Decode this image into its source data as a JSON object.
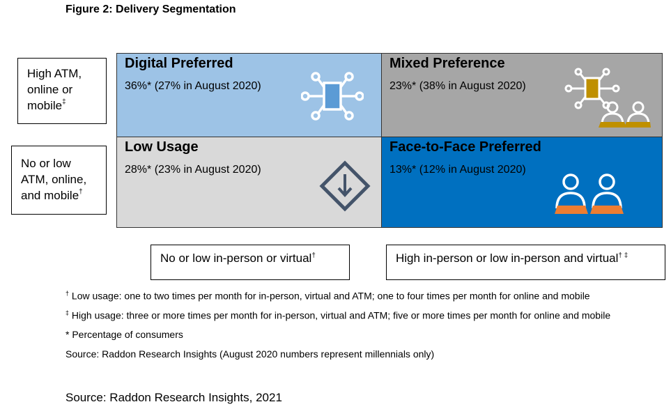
{
  "title": "Figure 2: Delivery Segmentation",
  "row_labels": {
    "high": {
      "line1": "High ATM,",
      "line2": "online or",
      "line3": "mobile",
      "mark": "‡"
    },
    "low": {
      "line1": "No or low",
      "line2": "ATM, online,",
      "line3": "and mobile",
      "mark": "†"
    }
  },
  "col_labels": {
    "low": {
      "text": "No or low in-person or virtual",
      "mark": "†"
    },
    "high": {
      "text": "High in-person or low in-person and virtual",
      "mark": "† ‡"
    }
  },
  "quadrants": {
    "digital": {
      "title": "Digital Preferred",
      "value": "36%* (27% in August 2020)",
      "color": "#9dc3e6",
      "icon": "chip-network-icon"
    },
    "mixed": {
      "title": "Mixed Preference",
      "value": "23%* (38% in August 2020)",
      "color": "#a6a6a6",
      "icon": "chip-with-people-icon"
    },
    "low": {
      "title": "Low Usage",
      "value": "28%* (23% in August 2020)",
      "color": "#d9d9d9",
      "icon": "diamond-down-arrow-icon"
    },
    "face": {
      "title": "Face-to-Face Preferred",
      "value": "13%* (12% in August 2020)",
      "color": "#0070c0",
      "icon": "two-people-icon"
    }
  },
  "notes": {
    "n1": {
      "mark": "†",
      "text": " Low usage: one to two times per month for in-person, virtual and ATM; one to four times per month for online and mobile"
    },
    "n2": {
      "mark": "‡",
      "text": " High usage: three or more times per month for in-person, virtual and ATM; five or more times per month for online and mobile"
    },
    "n3": "* Percentage of consumers",
    "n4": "Source: Raddon Research Insights (August 2020 numbers represent millennials only)"
  },
  "source": "Source: Raddon Research Insights, 2021"
}
